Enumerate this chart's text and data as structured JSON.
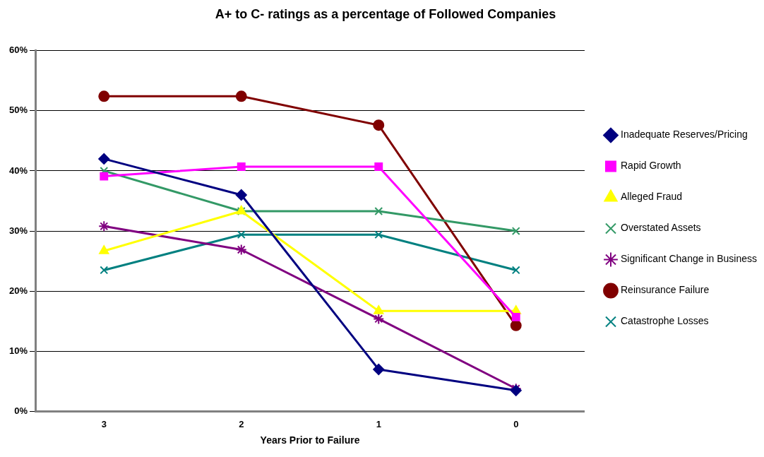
{
  "chart_data": {
    "type": "line",
    "title": "A+ to C- ratings as a percentage of Followed Companies",
    "xlabel": "Years Prior to Failure",
    "categories": [
      "3",
      "2",
      "1",
      "0"
    ],
    "series": [
      {
        "name": "Inadequate Reserves/Pricing",
        "color": "#000080",
        "marker": "diamond",
        "values": [
          42.0,
          36.0,
          7.0,
          3.5
        ]
      },
      {
        "name": "Rapid Growth",
        "color": "#ff00ff",
        "marker": "square",
        "values": [
          39.1,
          40.7,
          40.7,
          15.7
        ]
      },
      {
        "name": "Alleged Fraud",
        "color": "#ffff00",
        "marker": "triangle",
        "values": [
          26.7,
          33.3,
          16.7,
          16.7
        ]
      },
      {
        "name": "Overstated Assets",
        "color": "#339966",
        "marker": "cross",
        "values": [
          40.0,
          33.3,
          33.3,
          30.0
        ]
      },
      {
        "name": "Significant Change in Business",
        "color": "#800080",
        "marker": "cross",
        "values": [
          30.8,
          26.9,
          15.4,
          3.8
        ]
      },
      {
        "name": "Reinsurance Failure",
        "color": "#800000",
        "marker": "circle",
        "values": [
          52.4,
          52.4,
          47.6,
          14.3
        ]
      },
      {
        "name": "Catastrophe Losses",
        "color": "#008080",
        "marker": "cross",
        "values": [
          23.5,
          29.4,
          29.4,
          23.5
        ]
      }
    ],
    "ylim": [
      0,
      60
    ],
    "yticks": [
      {
        "value": 0,
        "label": "0%"
      },
      {
        "value": 10,
        "label": "10%"
      },
      {
        "value": 20,
        "label": "20%"
      },
      {
        "value": 30,
        "label": "30%"
      },
      {
        "value": 40,
        "label": "40%"
      },
      {
        "value": 50,
        "label": "50%"
      },
      {
        "value": 60,
        "label": "60%"
      }
    ],
    "grid": "y",
    "legend": "right",
    "line_style": "solid"
  }
}
